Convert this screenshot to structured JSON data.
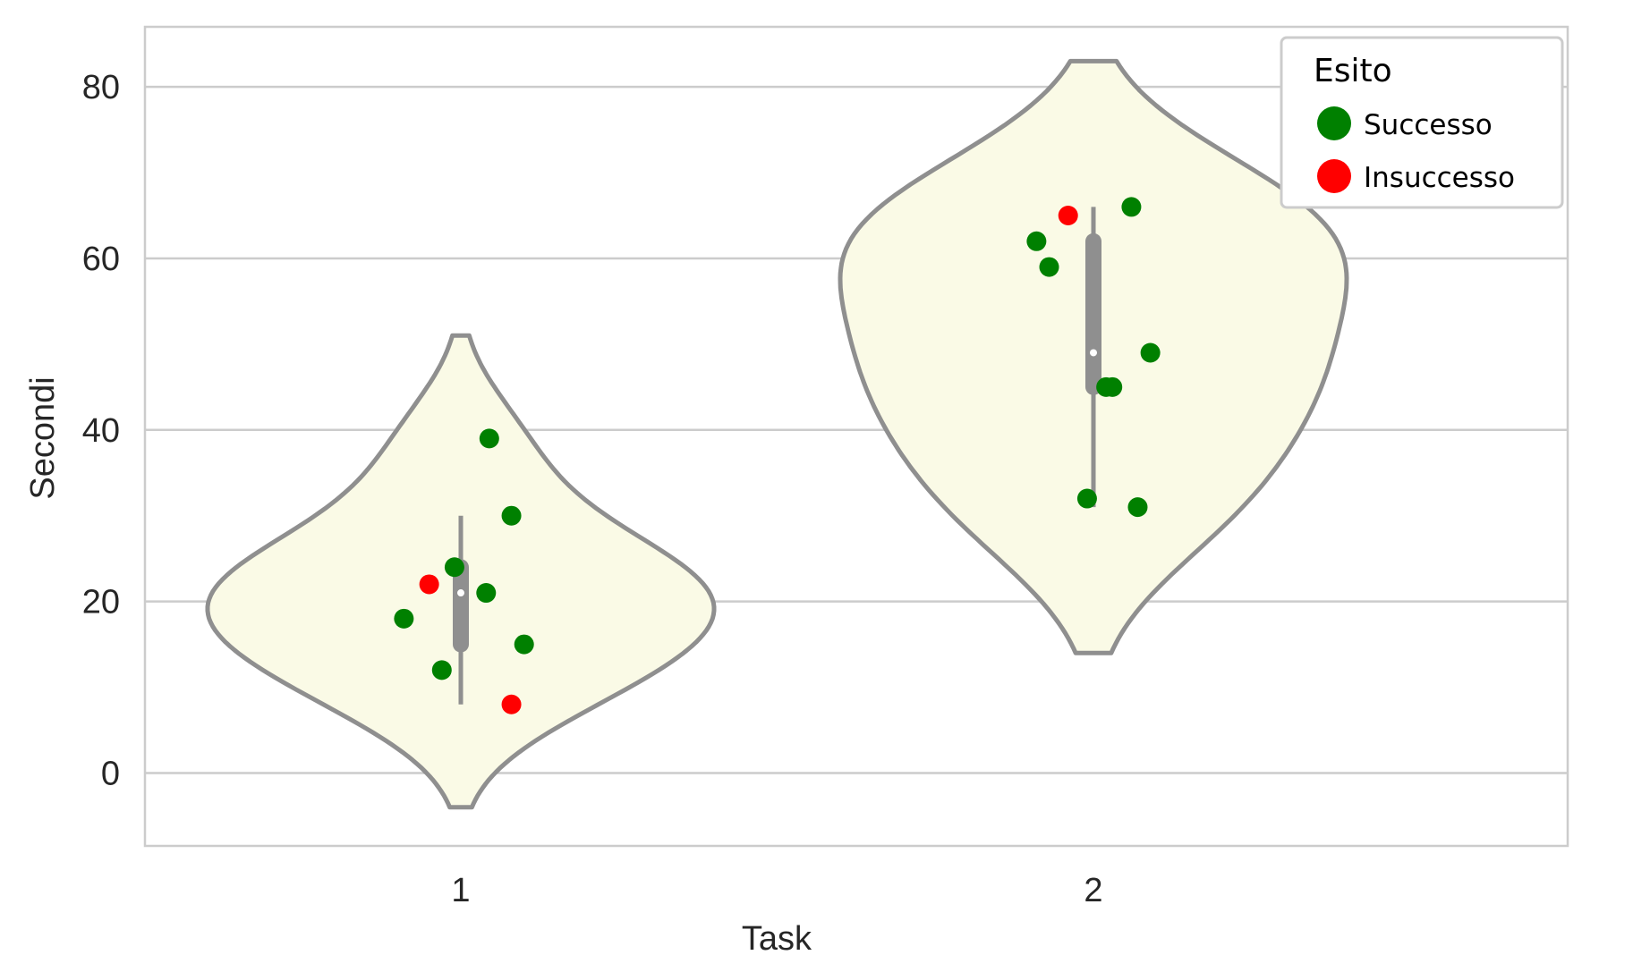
{
  "chart_data": {
    "type": "violin",
    "title": "",
    "xlabel": "Task",
    "ylabel": "Secondi",
    "categories": [
      "1",
      "2"
    ],
    "ylim": [
      -8.5,
      87
    ],
    "yticks": [
      0,
      20,
      40,
      60,
      80
    ],
    "ytick_labels": [
      "0",
      "20",
      "40",
      "60",
      "80"
    ],
    "grid": "horizontal",
    "violins": [
      {
        "task": "1",
        "kde_y_range": [
          -4,
          51
        ],
        "median": 21,
        "q1": 15,
        "q3": 24,
        "whisker_low": 8,
        "whisker_high": 30,
        "fill": "#fafae6",
        "edge": "#8f8f8f"
      },
      {
        "task": "2",
        "kde_y_range": [
          14,
          83
        ],
        "median": 49,
        "q1": 45,
        "q3": 62,
        "whisker_low": 31,
        "whisker_high": 66,
        "fill": "#fafae6",
        "edge": "#8f8f8f"
      }
    ],
    "points": [
      {
        "task": "1",
        "offset": -0.09,
        "value": 18,
        "outcome": "Successo"
      },
      {
        "task": "1",
        "offset": -0.03,
        "value": 12,
        "outcome": "Successo"
      },
      {
        "task": "1",
        "offset": -0.05,
        "value": 22,
        "outcome": "Insuccesso"
      },
      {
        "task": "1",
        "offset": -0.01,
        "value": 24,
        "outcome": "Successo"
      },
      {
        "task": "1",
        "offset": 0.04,
        "value": 21,
        "outcome": "Successo"
      },
      {
        "task": "1",
        "offset": 0.045,
        "value": 39,
        "outcome": "Successo"
      },
      {
        "task": "1",
        "offset": 0.08,
        "value": 30,
        "outcome": "Successo"
      },
      {
        "task": "1",
        "offset": 0.08,
        "value": 8,
        "outcome": "Insuccesso"
      },
      {
        "task": "1",
        "offset": 0.1,
        "value": 15,
        "outcome": "Successo"
      },
      {
        "task": "2",
        "offset": -0.09,
        "value": 62,
        "outcome": "Successo"
      },
      {
        "task": "2",
        "offset": -0.07,
        "value": 59,
        "outcome": "Successo"
      },
      {
        "task": "2",
        "offset": -0.04,
        "value": 65,
        "outcome": "Insuccesso"
      },
      {
        "task": "2",
        "offset": -0.01,
        "value": 32,
        "outcome": "Successo"
      },
      {
        "task": "2",
        "offset": 0.02,
        "value": 45,
        "outcome": "Successo"
      },
      {
        "task": "2",
        "offset": 0.03,
        "value": 45,
        "outcome": "Successo"
      },
      {
        "task": "2",
        "offset": 0.06,
        "value": 66,
        "outcome": "Successo"
      },
      {
        "task": "2",
        "offset": 0.07,
        "value": 31,
        "outcome": "Successo"
      },
      {
        "task": "2",
        "offset": 0.09,
        "value": 49,
        "outcome": "Successo"
      }
    ],
    "legend": {
      "title": "Esito",
      "position": "top-right",
      "entries": [
        {
          "label": "Successo",
          "color": "#008000"
        },
        {
          "label": "Insuccesso",
          "color": "#ff0000"
        }
      ]
    },
    "colors": {
      "grid": "#cccccc",
      "frame": "#cccccc",
      "box": "#8f8f8f",
      "median": "#ffffff"
    }
  }
}
